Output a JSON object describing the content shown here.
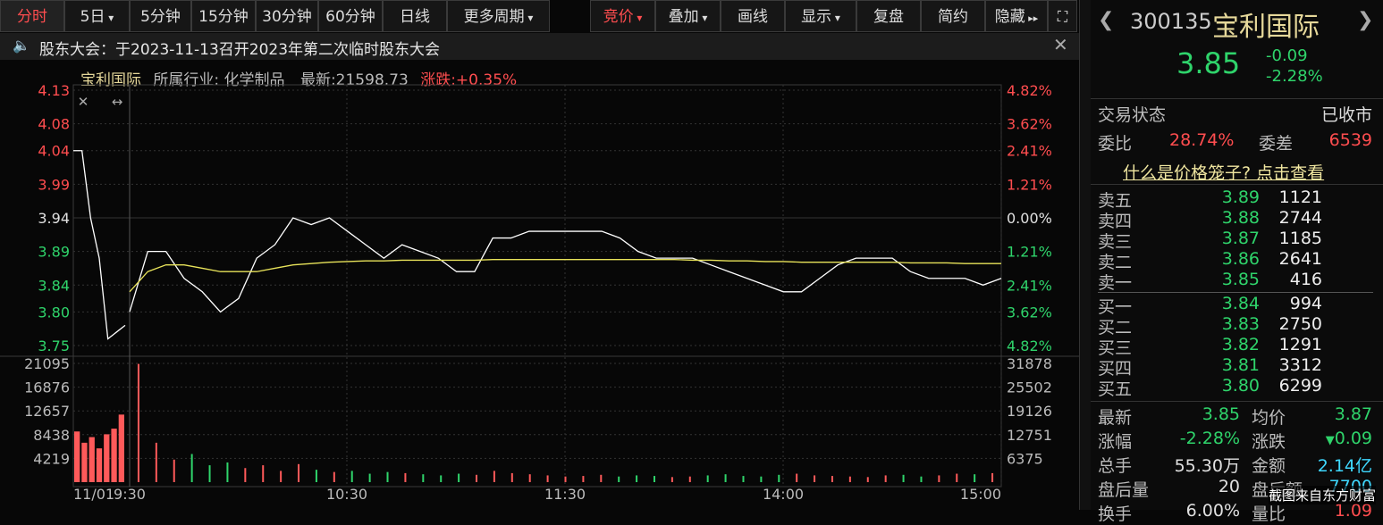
{
  "toolbar": {
    "tabs": [
      "分时",
      "5日",
      "5分钟",
      "15分钟",
      "30分钟",
      "60分钟",
      "日线",
      "更多周期"
    ],
    "tools": [
      "竞价",
      "叠加",
      "画线",
      "显示",
      "复盘",
      "简约",
      "隐藏"
    ]
  },
  "notice": "股东大会：于2023-11-13召开2023年第二次临时股东大会",
  "chart_header": {
    "name": "宝利国际",
    "industry": "所属行业: 化学制品",
    "latest": "最新:21598.73",
    "change": "涨跌:+0.35%"
  },
  "chart_data": {
    "type": "line",
    "price": {
      "ylim": [
        3.75,
        4.13
      ],
      "yticks": [
        4.13,
        4.08,
        4.04,
        3.99,
        3.94,
        3.89,
        3.84,
        {
          "value": 3.8,
          "label": "3.80"
        },
        3.75
      ],
      "pct_labels": [
        "4.82%",
        "3.62%",
        "2.41%",
        "1.21%",
        "0.00%",
        "1.21%",
        "2.41%",
        "3.62%",
        "4.82%"
      ],
      "premarket": [
        4.04,
        4.04,
        3.94,
        3.88,
        3.76,
        3.77,
        3.78
      ],
      "series": [
        {
          "name": "价格",
          "color": "#ffffff",
          "values": [
            3.8,
            3.89,
            3.89,
            3.85,
            3.83,
            3.8,
            3.82,
            3.88,
            3.9,
            3.94,
            3.93,
            3.94,
            3.92,
            3.9,
            3.88,
            3.9,
            3.89,
            3.88,
            3.86,
            3.86,
            3.91,
            3.91,
            3.92,
            3.92,
            3.92,
            3.92,
            3.92,
            3.91,
            3.89,
            3.88,
            3.88,
            3.88,
            3.87,
            3.86,
            3.85,
            3.84,
            3.83,
            3.83,
            3.85,
            3.87,
            3.88,
            3.88,
            3.88,
            3.86,
            3.85,
            3.85,
            3.85,
            3.84,
            3.85
          ]
        },
        {
          "name": "均价",
          "color": "#e8e35a",
          "values": [
            3.83,
            3.86,
            3.87,
            3.87,
            3.865,
            3.86,
            3.86,
            3.86,
            3.865,
            3.87,
            3.872,
            3.874,
            3.875,
            3.876,
            3.876,
            3.877,
            3.877,
            3.877,
            3.877,
            3.877,
            3.878,
            3.878,
            3.878,
            3.878,
            3.878,
            3.878,
            3.878,
            3.878,
            3.878,
            3.878,
            3.878,
            3.877,
            3.877,
            3.876,
            3.876,
            3.875,
            3.875,
            3.874,
            3.874,
            3.874,
            3.874,
            3.874,
            3.874,
            3.873,
            3.873,
            3.873,
            3.872,
            3.872,
            3.872
          ]
        }
      ]
    },
    "volume": {
      "ylim": [
        0,
        21095
      ],
      "yticks": [
        21095,
        16876,
        12657,
        8438,
        4219
      ],
      "right_labels": [
        "31878",
        "25502",
        "19126",
        "12751",
        "6375"
      ],
      "premarket": [
        9000,
        7000,
        8000,
        6000,
        8500,
        9500,
        12000
      ],
      "values": [
        21000,
        7000,
        4000,
        5000,
        3000,
        3500,
        2500,
        3000,
        2000,
        3200,
        2200,
        1800,
        2000,
        1500,
        1800,
        1600,
        1400,
        1200,
        1500,
        1300,
        2000,
        1600,
        1400,
        1200,
        1000,
        1100,
        1300,
        1000,
        1200,
        1100,
        900,
        1000,
        1200,
        1400,
        1100,
        1000,
        1300,
        1500,
        1200,
        1100,
        1000,
        900,
        1200,
        1300,
        1000,
        1200,
        1500,
        1400,
        1600
      ]
    },
    "xticks": [
      "11/01",
      "9:30",
      "10:30",
      "11:30",
      "14:00",
      "15:00"
    ]
  },
  "quote": {
    "code": "300135",
    "name": "宝利国际",
    "price": "3.85",
    "change": "-0.09",
    "pct": "-2.28%",
    "status_label": "交易状态",
    "status": "已收市",
    "ratio_label": "委比",
    "ratio": "28.74%",
    "diff_label": "委差",
    "diff": "6539",
    "link": "什么是价格笼子? 点击查看",
    "asks": [
      [
        "卖五",
        "3.89",
        "1121"
      ],
      [
        "卖四",
        "3.88",
        "2744"
      ],
      [
        "卖三",
        "3.87",
        "1185"
      ],
      [
        "卖二",
        "3.86",
        "2641"
      ],
      [
        "卖一",
        "3.85",
        "416"
      ]
    ],
    "bids": [
      [
        "买一",
        "3.84",
        "994"
      ],
      [
        "买二",
        "3.83",
        "2750"
      ],
      [
        "买三",
        "3.82",
        "1291"
      ],
      [
        "买四",
        "3.81",
        "3312"
      ],
      [
        "买五",
        "3.80",
        "6299"
      ]
    ],
    "stats": [
      [
        "最新",
        "3.85",
        "均价",
        "3.87"
      ],
      [
        "涨幅",
        "-2.28%",
        "涨跌",
        "0.09"
      ],
      [
        "总手",
        "55.30万",
        "金额",
        "2.14亿"
      ],
      [
        "盘后量",
        "20",
        "盘后额",
        "7700"
      ],
      [
        "换手",
        "6.00%",
        "量比",
        "1.09"
      ]
    ]
  },
  "watermark": "截图来自东方财富"
}
